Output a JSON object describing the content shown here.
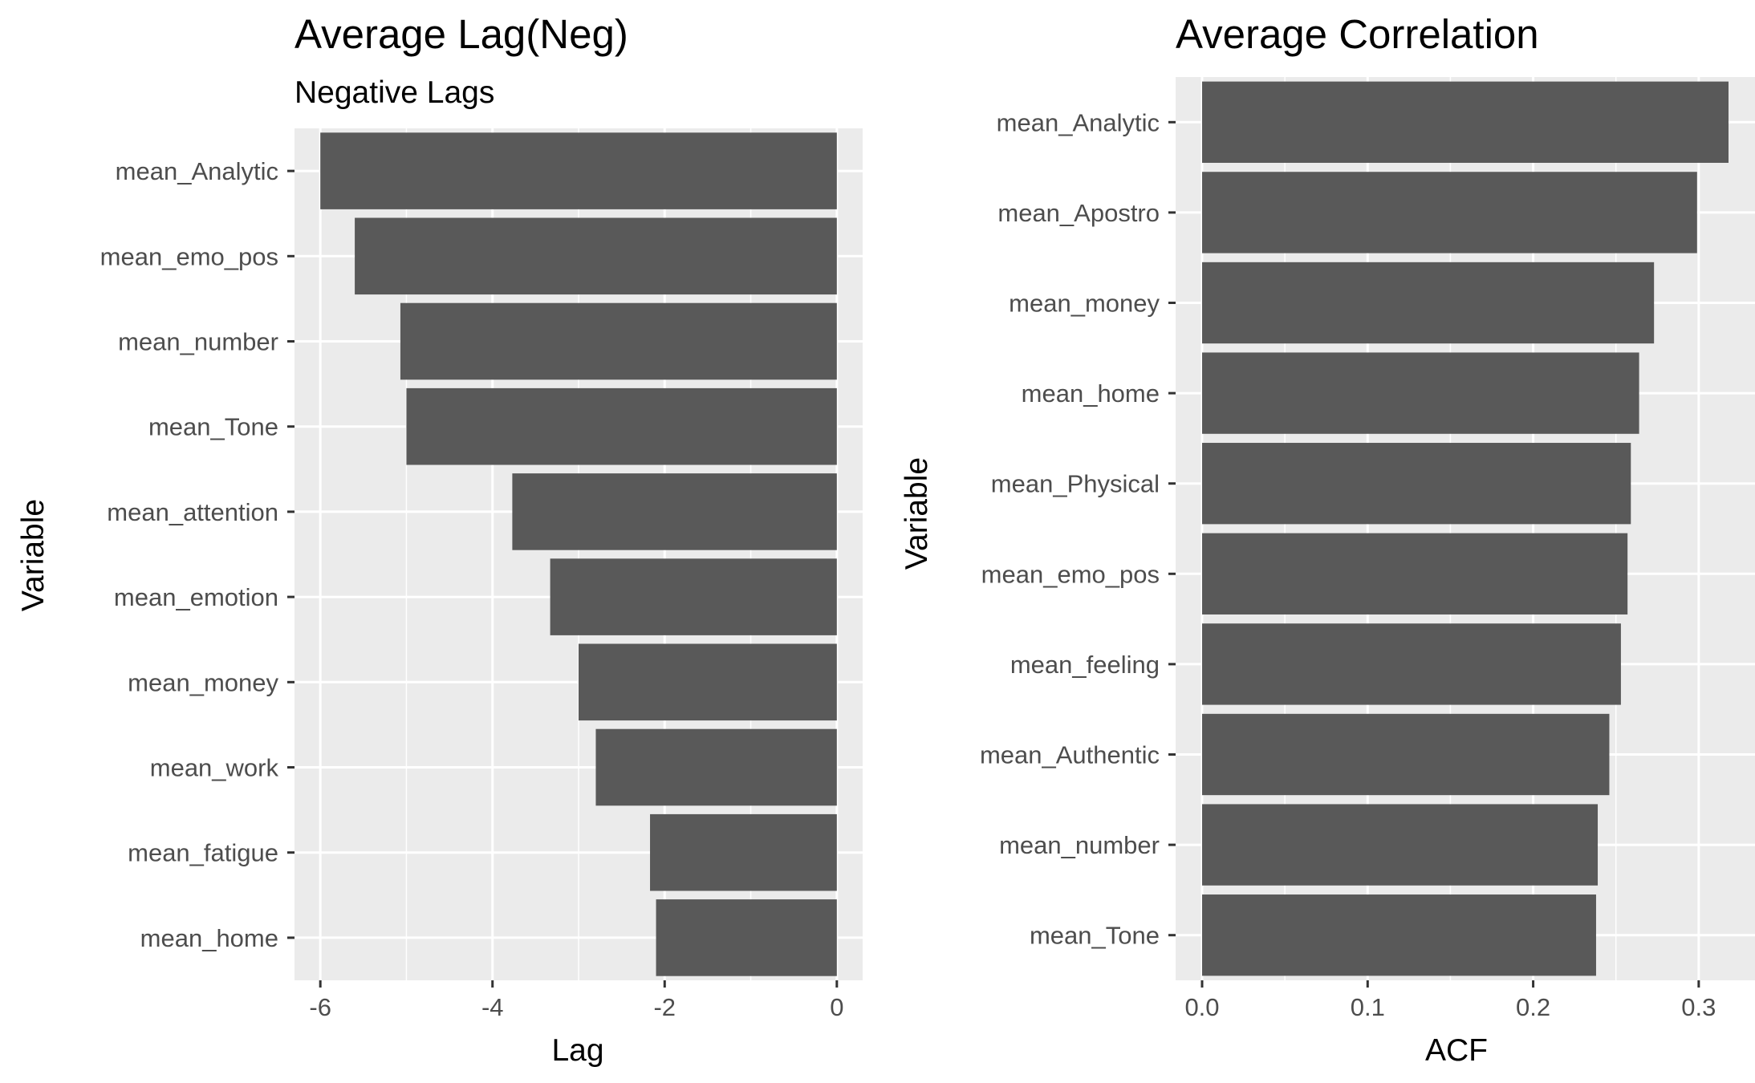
{
  "chart_data": [
    {
      "type": "bar",
      "orientation": "horizontal",
      "title": "Average Lag(Neg)",
      "subtitle": "Negative Lags",
      "xlabel": "Lag",
      "ylabel": "Variable",
      "categories": [
        "mean_Analytic",
        "mean_emo_pos",
        "mean_number",
        "mean_Tone",
        "mean_attention",
        "mean_emotion",
        "mean_money",
        "mean_work",
        "mean_fatigue",
        "mean_home"
      ],
      "values": [
        -6.0,
        -5.6,
        -5.07,
        -5.0,
        -3.77,
        -3.33,
        -3.0,
        -2.8,
        -2.17,
        -2.1
      ],
      "xlim": [
        -6.3,
        0.3
      ],
      "xticks": [
        -6,
        -4,
        -2,
        0
      ],
      "xtick_labels": [
        "-6",
        "-4",
        "-2",
        "0"
      ],
      "grid": true,
      "bar_color": "#595959",
      "panel_background": "#ebebeb",
      "grid_color": "#ffffff"
    },
    {
      "type": "bar",
      "orientation": "horizontal",
      "title": "Average Correlation",
      "xlabel": "ACF",
      "ylabel": "Variable",
      "categories": [
        "mean_Analytic",
        "mean_Apostro",
        "mean_money",
        "mean_home",
        "mean_Physical",
        "mean_emo_pos",
        "mean_feeling",
        "mean_Authentic",
        "mean_number",
        "mean_Tone"
      ],
      "values": [
        0.318,
        0.299,
        0.273,
        0.264,
        0.259,
        0.257,
        0.253,
        0.246,
        0.239,
        0.238
      ],
      "xlim": [
        -0.016,
        0.334
      ],
      "xticks": [
        0.0,
        0.1,
        0.2,
        0.3
      ],
      "xtick_labels": [
        "0.0",
        "0.1",
        "0.2",
        "0.3"
      ],
      "grid": true,
      "bar_color": "#595959",
      "panel_background": "#ebebeb",
      "grid_color": "#ffffff"
    }
  ]
}
